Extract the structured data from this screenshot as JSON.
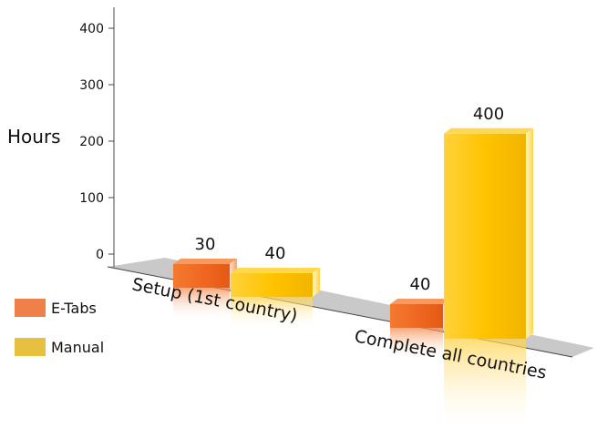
{
  "chart_data": {
    "type": "bar",
    "ylabel": "Hours",
    "yticks": [
      0,
      100,
      200,
      300,
      400
    ],
    "ylim": [
      0,
      440
    ],
    "categories": [
      "Setup (1st country)",
      "Complete all countries"
    ],
    "series": [
      {
        "name": "E-Tabs",
        "values": [
          30,
          40
        ],
        "color": "#f06a20"
      },
      {
        "name": "Manual",
        "values": [
          40,
          400
        ],
        "color": "#ffc400"
      }
    ],
    "data_labels": [
      [
        "30",
        "40"
      ],
      [
        "40",
        "400"
      ]
    ],
    "legend_position": "left"
  }
}
